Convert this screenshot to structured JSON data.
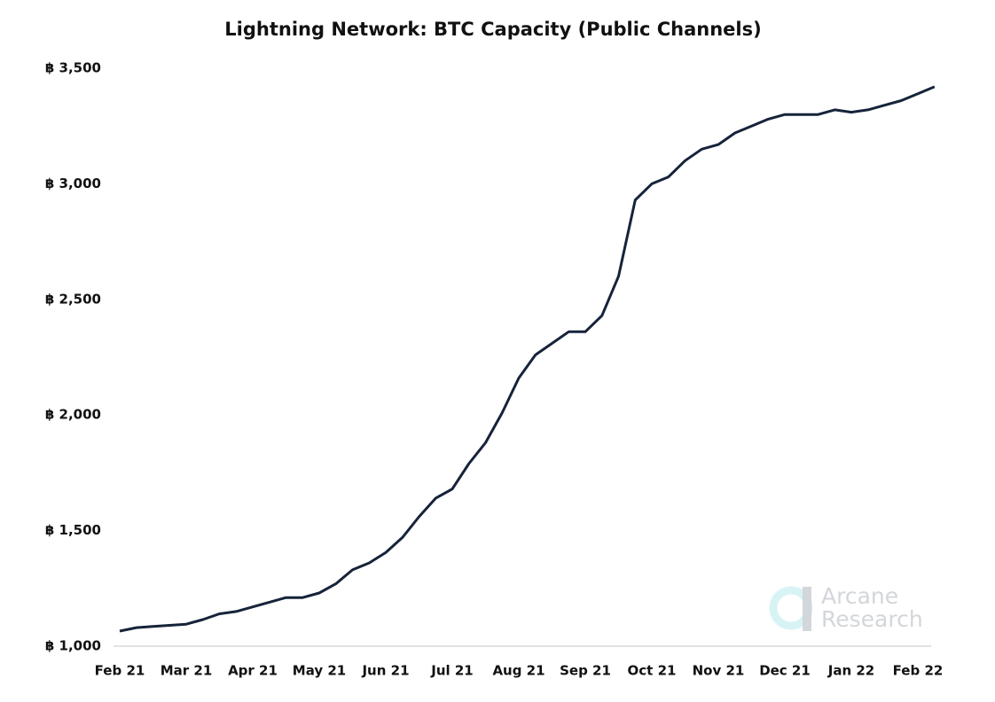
{
  "chart_data": {
    "type": "line",
    "title": "Lightning Network: BTC Capacity (Public Channels)",
    "watermark": "Arcane Research",
    "categories": [
      "Feb 21",
      null,
      null,
      null,
      "Mar 21",
      null,
      null,
      null,
      "Apr 21",
      null,
      null,
      null,
      "May 21",
      null,
      null,
      null,
      "Jun 21",
      null,
      null,
      null,
      "Jul 21",
      null,
      null,
      null,
      "Aug 21",
      null,
      null,
      null,
      "Sep 21",
      null,
      null,
      null,
      "Oct 21",
      null,
      null,
      null,
      "Nov 21",
      null,
      null,
      null,
      "Dec 21",
      null,
      null,
      null,
      "Jan 22",
      null,
      null,
      null,
      "Feb 22",
      null
    ],
    "series": [
      {
        "name": "BTC Capacity",
        "color": "#16233a",
        "values": [
          1065,
          1080,
          1085,
          1090,
          1095,
          1115,
          1140,
          1150,
          1170,
          1190,
          1210,
          1210,
          1230,
          1270,
          1330,
          1360,
          1405,
          1470,
          1560,
          1640,
          1680,
          1790,
          1880,
          2010,
          2160,
          2260,
          2310,
          2360,
          2360,
          2430,
          2600,
          2930,
          3000,
          3030,
          3100,
          3150,
          3170,
          3220,
          3250,
          3280,
          3300,
          3300,
          3300,
          3320,
          3310,
          3320,
          3340,
          3360,
          3390,
          3420
        ]
      }
    ],
    "ylim": [
      1000,
      3500
    ],
    "yticks": [
      {
        "value": 1000,
        "label": "฿ 1,000"
      },
      {
        "value": 1500,
        "label": "฿ 1,500"
      },
      {
        "value": 2000,
        "label": "฿ 2,000"
      },
      {
        "value": 2500,
        "label": "฿ 2,500"
      },
      {
        "value": 3000,
        "label": "฿ 3,000"
      },
      {
        "value": 3500,
        "label": "฿ 3,500"
      }
    ],
    "grid": false
  }
}
